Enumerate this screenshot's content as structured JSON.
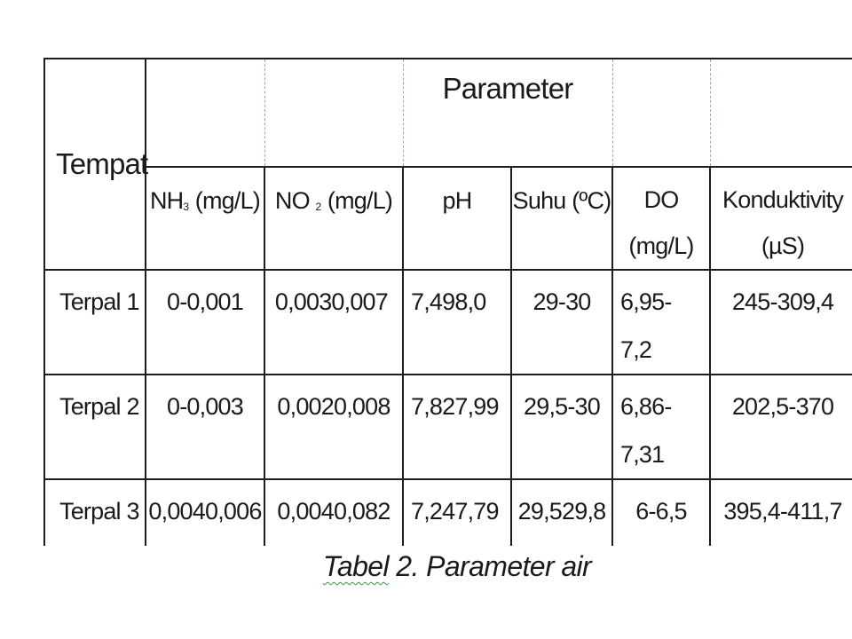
{
  "table": {
    "tempat_header": "Tempat",
    "parameter_header": "Parameter",
    "columns": {
      "nh3_pre": "NH",
      "nh3_sub": "3",
      "nh3_post": " (mg/L)",
      "no2_pre": "NO ",
      "no2_sub": "2",
      "no2_post": " (mg/L)",
      "ph": "pH",
      "suhu": "Suhu (ºC)",
      "do_l1": "DO",
      "do_l2": "(mg/L)",
      "kond_l1": "Konduktivity",
      "kond_l2": "(µS)"
    },
    "rows": [
      {
        "tempat": "Terpal 1",
        "nh3": "0-0,001",
        "no2": "0,0030,007",
        "ph": "7,498,0",
        "suhu": "29-30",
        "do_l1": "6,95-",
        "do_l2": "7,2",
        "konduktivity": "245-309,4"
      },
      {
        "tempat": "Terpal 2",
        "nh3": "0-0,003",
        "no2": "0,0020,008",
        "ph": "7,827,99",
        "suhu": "29,5-30",
        "do_l1": "6,86-",
        "do_l2": "7,31",
        "konduktivity": "202,5-370"
      },
      {
        "tempat": "Terpal 3",
        "nh3": "0,0040,006",
        "no2": "0,0040,082",
        "ph": "7,247,79",
        "suhu": "29,529,8",
        "do_l1": "6-6,5",
        "do_l2": "",
        "konduktivity": "395,4-411,7"
      }
    ]
  },
  "caption": {
    "part1": "Tabel",
    "part2": " 2. Parameter air"
  }
}
